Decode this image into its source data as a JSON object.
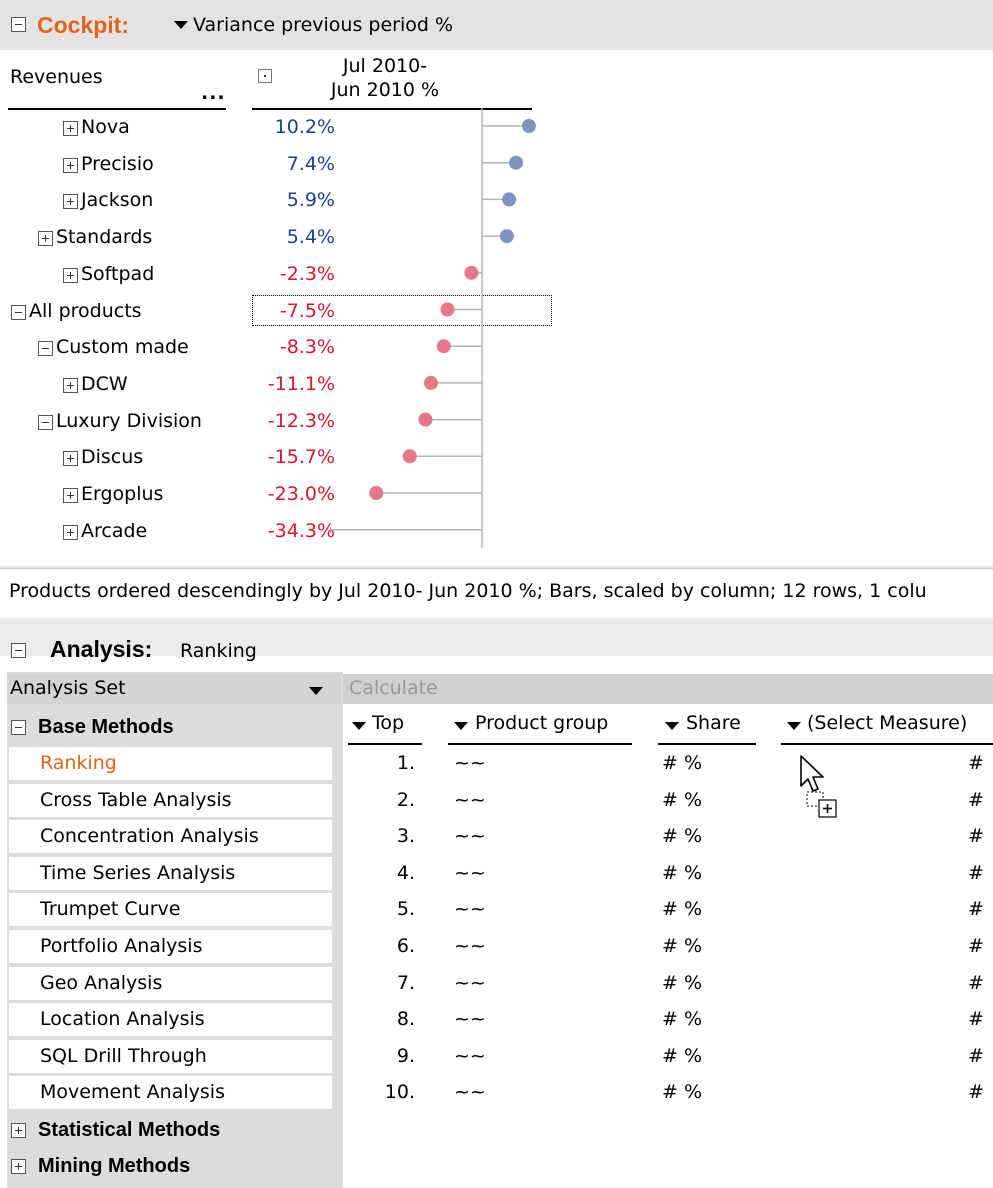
{
  "cockpit": {
    "title": "Cockpit:",
    "measure": "Variance previous period %",
    "row_header": "Revenues",
    "row_header_more": "...",
    "column_header_line1": "Jul 2010-",
    "column_header_line2": "Jun 2010 %",
    "rows": [
      {
        "label": "Nova",
        "value_text": "10.2%",
        "value": 10.2,
        "indent": 2,
        "toggle": "plus"
      },
      {
        "label": "Precisio",
        "value_text": "7.4%",
        "value": 7.4,
        "indent": 2,
        "toggle": "plus"
      },
      {
        "label": "Jackson",
        "value_text": "5.9%",
        "value": 5.9,
        "indent": 2,
        "toggle": "plus"
      },
      {
        "label": "Standards",
        "value_text": "5.4%",
        "value": 5.4,
        "indent": 1,
        "toggle": "plus"
      },
      {
        "label": "Softpad",
        "value_text": "-2.3%",
        "value": -2.3,
        "indent": 2,
        "toggle": "plus"
      },
      {
        "label": "All products",
        "value_text": "-7.5%",
        "value": -7.5,
        "indent": 0,
        "toggle": "minus"
      },
      {
        "label": "Custom made",
        "value_text": "-8.3%",
        "value": -8.3,
        "indent": 1,
        "toggle": "minus"
      },
      {
        "label": "DCW",
        "value_text": "-11.1%",
        "value": -11.1,
        "indent": 2,
        "toggle": "plus"
      },
      {
        "label": "Luxury Division",
        "value_text": "-12.3%",
        "value": -12.3,
        "indent": 1,
        "toggle": "minus"
      },
      {
        "label": "Discus",
        "value_text": "-15.7%",
        "value": -15.7,
        "indent": 2,
        "toggle": "plus"
      },
      {
        "label": "Ergoplus",
        "value_text": "-23.0%",
        "value": -23.0,
        "indent": 2,
        "toggle": "plus"
      },
      {
        "label": "Arcade",
        "value_text": "-34.3%",
        "value": -34.3,
        "indent": 2,
        "toggle": "plus"
      }
    ],
    "status": "Products ordered descendingly by Jul 2010-  Jun 2010 %; Bars, scaled by column; 12 rows, 1 colu",
    "colors": {
      "title": "#e0631b",
      "positive": "#1f3f8f",
      "negative": "#d3172f",
      "positive_dot": "#7d93c2",
      "negative_dot": "#e57788"
    }
  },
  "analysis": {
    "title": "Analysis:",
    "subtitle": "Ranking",
    "analysis_set_label": "Analysis Set",
    "calculate_label": "Calculate",
    "base_methods_label": "Base Methods",
    "methods": [
      "Ranking",
      "Cross Table Analysis",
      "Concentration Analysis",
      "Time Series Analysis",
      "Trumpet Curve",
      "Portfolio Analysis",
      "Geo Analysis",
      "Location Analysis",
      "SQL Drill Through",
      "Movement Analysis"
    ],
    "active_method": "Ranking",
    "statistical_methods_label": "Statistical Methods",
    "mining_methods_label": "Mining Methods",
    "columns": [
      "Top",
      "Product group",
      "Share",
      "(Select Measure)"
    ],
    "ranks": [
      "1.",
      "2.",
      "3.",
      "4.",
      "5.",
      "6.",
      "7.",
      "8.",
      "9.",
      "10."
    ],
    "placeholder_group": "~~",
    "placeholder_share": "# %",
    "placeholder_measure": "#"
  }
}
